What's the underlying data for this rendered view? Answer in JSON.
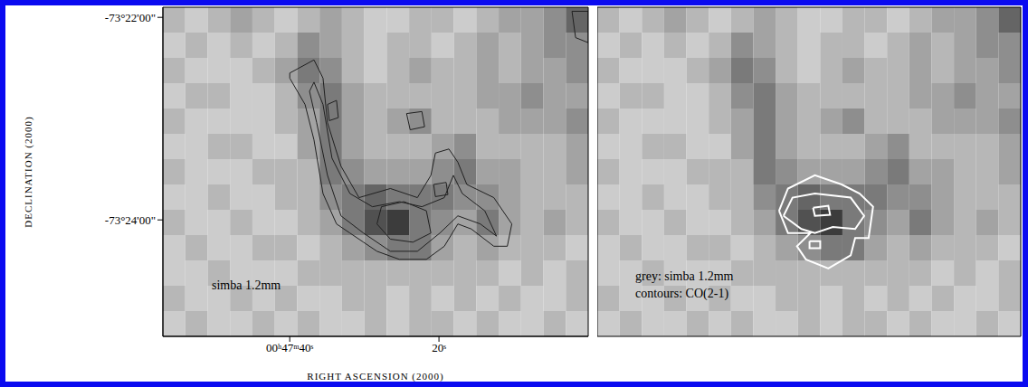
{
  "chart_data": [
    {
      "type": "heatmap",
      "annotations": [
        "simba 1.2mm"
      ],
      "xlabel": "RIGHT ASCENSION (2000)",
      "ylabel": "DECLINATION (2000)",
      "xlim": [
        57,
        0
      ],
      "xticks": [
        {
          "value": 40,
          "label": "00ʰ47ᵐ40ˢ"
        },
        {
          "value": 20,
          "label": "20ˢ"
        }
      ],
      "ylim": [
        -4405.15,
        -4401.9
      ],
      "yticks": [
        {
          "value": -4402,
          "label": "-73°22'00\""
        },
        {
          "value": -4404,
          "label": "-73°24'00\""
        }
      ],
      "image": {
        "x_edges": [
          57,
          54,
          51,
          48,
          45,
          42,
          39,
          36,
          33,
          30,
          27,
          24,
          21,
          18,
          15,
          12,
          9,
          6,
          3,
          0
        ],
        "y_edges": [
          -4401.9,
          -4402.15,
          -4402.4,
          -4402.65,
          -4402.9,
          -4403.15,
          -4403.4,
          -4403.65,
          -4403.9,
          -4404.15,
          -4404.4,
          -4404.65,
          -4404.9,
          -4405.15
        ],
        "clim": [
          0,
          9
        ],
        "values": [
          [
            3,
            2,
            3,
            4,
            3,
            2,
            3,
            4,
            3,
            2,
            2,
            3,
            3,
            2,
            3,
            4,
            4,
            5,
            7
          ],
          [
            2,
            3,
            2,
            3,
            2,
            3,
            5,
            4,
            3,
            2,
            3,
            3,
            2,
            3,
            4,
            3,
            4,
            5,
            5
          ],
          [
            3,
            2,
            2,
            2,
            3,
            4,
            6,
            5,
            3,
            2,
            3,
            4,
            3,
            3,
            4,
            3,
            4,
            4,
            5
          ],
          [
            2,
            3,
            3,
            2,
            2,
            3,
            5,
            6,
            4,
            3,
            3,
            3,
            3,
            3,
            4,
            4,
            5,
            4,
            4
          ],
          [
            3,
            2,
            2,
            2,
            2,
            3,
            4,
            6,
            4,
            3,
            4,
            5,
            3,
            3,
            3,
            4,
            4,
            4,
            5
          ],
          [
            2,
            2,
            3,
            3,
            2,
            2,
            4,
            6,
            4,
            3,
            3,
            3,
            4,
            5,
            3,
            3,
            3,
            3,
            4
          ],
          [
            3,
            2,
            2,
            2,
            3,
            3,
            3,
            6,
            5,
            4,
            4,
            4,
            5,
            6,
            4,
            4,
            3,
            3,
            4
          ],
          [
            2,
            2,
            3,
            2,
            2,
            3,
            3,
            5,
            6,
            7,
            6,
            6,
            6,
            5,
            5,
            4,
            3,
            3,
            3
          ],
          [
            3,
            2,
            2,
            3,
            2,
            2,
            3,
            4,
            6,
            8,
            9,
            6,
            5,
            4,
            6,
            4,
            3,
            4,
            3
          ],
          [
            2,
            3,
            2,
            2,
            3,
            3,
            2,
            3,
            4,
            5,
            6,
            6,
            4,
            3,
            4,
            3,
            3,
            3,
            2
          ],
          [
            2,
            2,
            3,
            2,
            2,
            2,
            3,
            3,
            3,
            3,
            3,
            3,
            3,
            3,
            3,
            2,
            3,
            2,
            3
          ],
          [
            3,
            2,
            2,
            3,
            2,
            3,
            2,
            2,
            3,
            3,
            2,
            3,
            2,
            3,
            2,
            3,
            2,
            2,
            3
          ],
          [
            2,
            3,
            2,
            2,
            3,
            2,
            3,
            2,
            2,
            3,
            2,
            3,
            3,
            2,
            3,
            2,
            2,
            3,
            2
          ]
        ]
      },
      "contours": [
        {
          "color": "#202020",
          "x": [
            40,
            36.75,
            35.54,
            34.94,
            33.13,
            30.72,
            26.51,
            22.89,
            21.08,
            20.48,
            18.67,
            17.47,
            16.27,
            12.65,
            10.24,
            10.84,
            12.65,
            15.66,
            17.47,
            19.28,
            21.69,
            25.3,
            28.31,
            30.12,
            31.93,
            33.73,
            35.54,
            36.75,
            37.95,
            40,
            40
          ],
          "y": [
            -4402.55,
            -4402.42,
            -4402.6,
            -4403.04,
            -4403.47,
            -4403.78,
            -4403.69,
            -4403.78,
            -4403.56,
            -4403.34,
            -4403.3,
            -4403.43,
            -4403.65,
            -4403.78,
            -4404.04,
            -4404.26,
            -4404.26,
            -4404.09,
            -4404.04,
            -4404.26,
            -4404.39,
            -4404.39,
            -4404.31,
            -4404.22,
            -4404.13,
            -4404.04,
            -4403.74,
            -4403.21,
            -4402.86,
            -4402.6,
            -4402.55
          ]
        },
        {
          "color": "#202020",
          "x": [
            36.75,
            35.54,
            34.34,
            31.93,
            28.92,
            25.3,
            22.29,
            19.28,
            18.07,
            16.87,
            13.86,
            12.29,
            14.46,
            17.47,
            19.88,
            22.89,
            26.51,
            30.12,
            33.13,
            34.94,
            36.39,
            37.35,
            36.75
          ],
          "y": [
            -4402.64,
            -4402.86,
            -4403.39,
            -4403.74,
            -4403.87,
            -4403.82,
            -4403.87,
            -4403.78,
            -4403.56,
            -4403.74,
            -4403.91,
            -4404.16,
            -4404.04,
            -4403.96,
            -4404.13,
            -4404.31,
            -4404.31,
            -4404.13,
            -4403.96,
            -4403.56,
            -4403.04,
            -4402.73,
            -4402.64
          ]
        },
        {
          "color": "#202020",
          "x": [
            27.71,
            24.7,
            21.69,
            21.08,
            23.49,
            26.51,
            28.31,
            27.71
          ],
          "y": [
            -4403.87,
            -4403.82,
            -4403.91,
            -4404.13,
            -4404.22,
            -4404.19,
            -4404.04,
            -4403.87
          ]
        },
        {
          "color": "#202020",
          "x": [
            34.94,
            33.73,
            33.49,
            34.7,
            34.94
          ],
          "y": [
            -4402.86,
            -4402.82,
            -4402.99,
            -4403.02,
            -4402.86
          ]
        },
        {
          "color": "#202020",
          "x": [
            24.34,
            22.29,
            21.93,
            23.86,
            24.34
          ],
          "y": [
            -4402.95,
            -4402.93,
            -4403.08,
            -4403.11,
            -4402.95
          ]
        },
        {
          "color": "#202020",
          "x": [
            20.72,
            19.04,
            18.8,
            20.48,
            20.72
          ],
          "y": [
            -4403.65,
            -4403.63,
            -4403.75,
            -4403.77,
            -4403.65
          ]
        },
        {
          "color": "#202020",
          "x": [
            2.17,
            0,
            0,
            1.69,
            2.17
          ],
          "y": [
            -4401.94,
            -4401.94,
            -4402.25,
            -4402.2,
            -4401.94
          ]
        }
      ]
    },
    {
      "type": "heatmap",
      "annotations": [
        "grey: simba 1.2mm",
        "contours: CO(2-1)"
      ],
      "tick_labels": false,
      "xlim": [
        57,
        0
      ],
      "ylim": [
        -4405.15,
        -4401.9
      ],
      "image": {
        "x_edges": [
          57,
          54,
          51,
          48,
          45,
          42,
          39,
          36,
          33,
          30,
          27,
          24,
          21,
          18,
          15,
          12,
          9,
          6,
          3,
          0
        ],
        "y_edges": [
          -4401.9,
          -4402.15,
          -4402.4,
          -4402.65,
          -4402.9,
          -4403.15,
          -4403.4,
          -4403.65,
          -4403.9,
          -4404.15,
          -4404.4,
          -4404.65,
          -4404.9,
          -4405.15
        ],
        "clim": [
          0,
          9
        ],
        "values": [
          [
            3,
            2,
            3,
            4,
            3,
            2,
            3,
            4,
            3,
            2,
            2,
            3,
            3,
            2,
            3,
            4,
            4,
            5,
            7
          ],
          [
            2,
            3,
            2,
            3,
            2,
            3,
            5,
            4,
            3,
            2,
            3,
            3,
            2,
            3,
            4,
            3,
            4,
            5,
            5
          ],
          [
            3,
            2,
            2,
            2,
            3,
            4,
            6,
            5,
            3,
            2,
            3,
            4,
            3,
            3,
            4,
            3,
            4,
            4,
            5
          ],
          [
            2,
            3,
            3,
            2,
            2,
            3,
            5,
            6,
            4,
            3,
            3,
            3,
            3,
            3,
            4,
            4,
            5,
            4,
            4
          ],
          [
            3,
            2,
            2,
            2,
            2,
            3,
            4,
            6,
            4,
            3,
            4,
            5,
            3,
            3,
            3,
            4,
            4,
            4,
            5
          ],
          [
            2,
            2,
            3,
            3,
            2,
            2,
            4,
            6,
            4,
            3,
            3,
            3,
            4,
            5,
            3,
            3,
            3,
            3,
            4
          ],
          [
            3,
            2,
            2,
            2,
            3,
            3,
            3,
            6,
            5,
            4,
            4,
            4,
            5,
            6,
            4,
            4,
            3,
            3,
            4
          ],
          [
            2,
            2,
            3,
            2,
            2,
            3,
            3,
            5,
            6,
            7,
            6,
            6,
            6,
            5,
            5,
            4,
            3,
            3,
            3
          ],
          [
            3,
            2,
            2,
            3,
            2,
            2,
            3,
            4,
            6,
            8,
            9,
            6,
            5,
            4,
            6,
            4,
            3,
            4,
            3
          ],
          [
            2,
            3,
            2,
            2,
            3,
            3,
            2,
            3,
            4,
            5,
            6,
            6,
            4,
            3,
            4,
            3,
            3,
            3,
            2
          ],
          [
            2,
            2,
            3,
            2,
            2,
            2,
            3,
            3,
            3,
            3,
            3,
            3,
            3,
            3,
            3,
            2,
            3,
            2,
            3
          ],
          [
            3,
            2,
            2,
            3,
            2,
            3,
            2,
            2,
            3,
            3,
            2,
            3,
            2,
            3,
            2,
            3,
            2,
            2,
            3
          ],
          [
            2,
            3,
            2,
            2,
            3,
            2,
            3,
            2,
            2,
            3,
            2,
            3,
            3,
            2,
            3,
            2,
            2,
            3,
            2
          ]
        ]
      },
      "contours": [
        {
          "color": "#ffffff",
          "x": [
            32.53,
            31.33,
            27.71,
            24.1,
            21.69,
            19.88,
            20.48,
            22.29,
            22.89,
            25.9,
            28.92,
            30.12,
            28.31,
            31.33,
            32.53
          ],
          "y": [
            -4403.91,
            -4403.69,
            -4403.56,
            -4403.65,
            -4403.74,
            -4403.87,
            -4404.18,
            -4404.18,
            -4404.35,
            -4404.48,
            -4404.39,
            -4404.26,
            -4404.13,
            -4404.13,
            -4403.91
          ]
        },
        {
          "color": "#ffffff",
          "x": [
            31.93,
            30.72,
            27.71,
            22.89,
            21.08,
            22.29,
            25.3,
            27.71,
            29.52,
            31.93
          ],
          "y": [
            -4403.96,
            -4403.78,
            -4403.74,
            -4403.78,
            -4403.96,
            -4404.09,
            -4404.07,
            -4404.13,
            -4404.09,
            -4403.96
          ]
        },
        {
          "color": "#ffffff",
          "x": [
            27.95,
            25.9,
            25.66,
            27.71,
            27.95
          ],
          "y": [
            -4403.88,
            -4403.86,
            -4403.95,
            -4403.96,
            -4403.88
          ]
        },
        {
          "color": "#ffffff",
          "x": [
            28.43,
            26.99,
            26.99,
            28.43,
            28.43
          ],
          "y": [
            -4404.21,
            -4404.21,
            -4404.28,
            -4404.28,
            -4404.21
          ]
        }
      ]
    }
  ]
}
